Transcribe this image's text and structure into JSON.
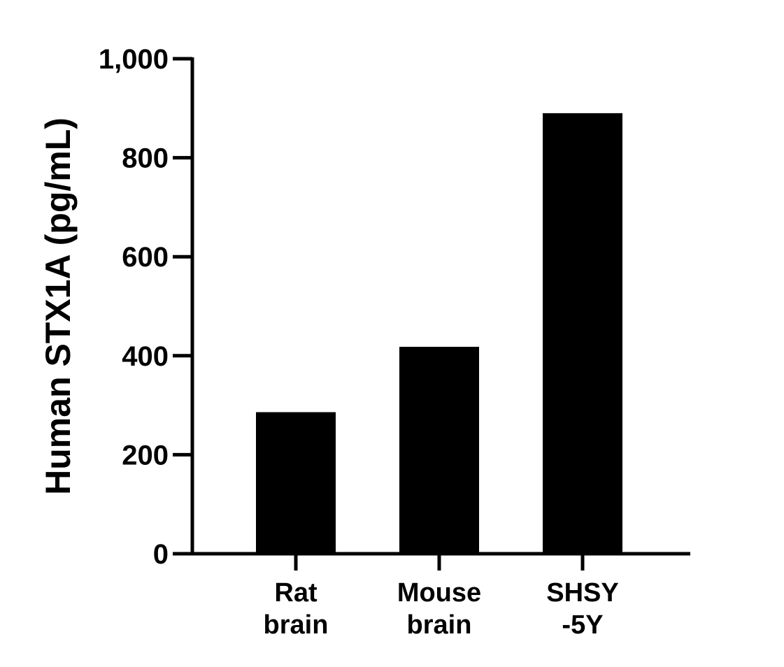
{
  "chart_data": {
    "type": "bar",
    "title": "",
    "xlabel": "",
    "ylabel": "Human STX1A (pg/mL)",
    "categories": [
      [
        "Rat",
        "brain"
      ],
      [
        "Mouse",
        "brain"
      ],
      [
        "SHSY",
        "-5Y"
      ]
    ],
    "values": [
      286,
      418,
      890
    ],
    "ylim": [
      0,
      1000
    ],
    "yticks": [
      0,
      200,
      400,
      600,
      800,
      1000
    ],
    "ytick_labels": [
      "0",
      "200",
      "400",
      "600",
      "800",
      "1,000"
    ],
    "grid": false,
    "legend": "none",
    "colors": {
      "bar": "#000000",
      "axis": "#000000",
      "background": "#ffffff"
    }
  }
}
